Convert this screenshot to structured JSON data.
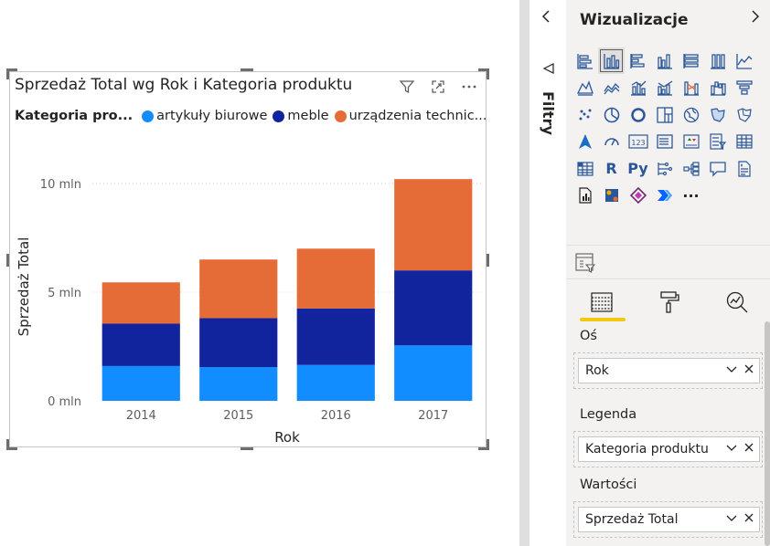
{
  "visual": {
    "title": "Sprzedaż Total wg Rok i Kategoria produktu",
    "legend": {
      "title": "Kategoria pro...",
      "items": [
        {
          "label": "artykuły biurowe",
          "color": "#118dff"
        },
        {
          "label": "meble",
          "color": "#12239e"
        },
        {
          "label": "urządzenia technic...",
          "color": "#e66c37"
        }
      ]
    },
    "icons": [
      "filter-icon",
      "focus-mode-icon",
      "more-options-icon"
    ]
  },
  "chart_data": {
    "type": "bar",
    "stacked": true,
    "categories": [
      "2014",
      "2015",
      "2016",
      "2017"
    ],
    "series": [
      {
        "name": "artykuły biurowe",
        "color": "#118dff",
        "values": [
          1.6,
          1.55,
          1.65,
          2.55
        ]
      },
      {
        "name": "meble",
        "color": "#12239e",
        "values": [
          1.95,
          2.25,
          2.6,
          3.45
        ]
      },
      {
        "name": "urządzenia technic...",
        "color": "#e66c37",
        "values": [
          1.9,
          2.7,
          2.75,
          4.2
        ]
      }
    ],
    "xlabel": "Rok",
    "ylabel": "Sprzedaż Total",
    "yticks": [
      {
        "value": 0,
        "label": "0 mln"
      },
      {
        "value": 5,
        "label": "5 mln"
      },
      {
        "value": 10,
        "label": "10 mln"
      }
    ],
    "ylim": [
      0,
      10.5
    ],
    "grid": true
  },
  "filters": {
    "label": "Filtry"
  },
  "viz_pane": {
    "title": "Wizualizacje",
    "icons": [
      "stacked-bar-chart-icon",
      "stacked-column-chart-icon",
      "clustered-bar-chart-icon",
      "clustered-column-chart-icon",
      "100-stacked-bar-chart-icon",
      "100-stacked-column-chart-icon",
      "line-chart-icon",
      "area-chart-icon",
      "stacked-area-chart-icon",
      "line-and-stacked-column-icon",
      "line-and-clustered-column-icon",
      "ribbon-chart-icon",
      "waterfall-chart-icon",
      "funnel-chart-icon",
      "scatter-chart-icon",
      "pie-chart-icon",
      "donut-chart-icon",
      "treemap-icon",
      "map-icon",
      "filled-map-icon",
      "shape-map-icon",
      "azure-map-icon",
      "gauge-icon",
      "card-icon",
      "multi-row-card-icon",
      "kpi-icon",
      "slicer-icon",
      "table-icon",
      "matrix-icon",
      "r-visual-icon",
      "python-visual-icon",
      "key-influencers-icon",
      "decomposition-tree-icon",
      "qa-icon",
      "smart-narrative-icon",
      "paginated-report-icon",
      "arcgis-map-icon",
      "power-apps-icon",
      "power-automate-icon",
      "more-visuals-icon"
    ],
    "r_text": "R",
    "py_text": "Py",
    "more_text": "···",
    "card_text": "123",
    "tabs": [
      "fields-tab-icon",
      "format-tab-icon",
      "analytics-tab-icon"
    ],
    "wells": [
      {
        "label": "Oś",
        "field": "Rok"
      },
      {
        "label": "Legenda",
        "field": "Kategoria produktu"
      },
      {
        "label": "Wartości",
        "field": "Sprzedaż Total"
      }
    ]
  }
}
